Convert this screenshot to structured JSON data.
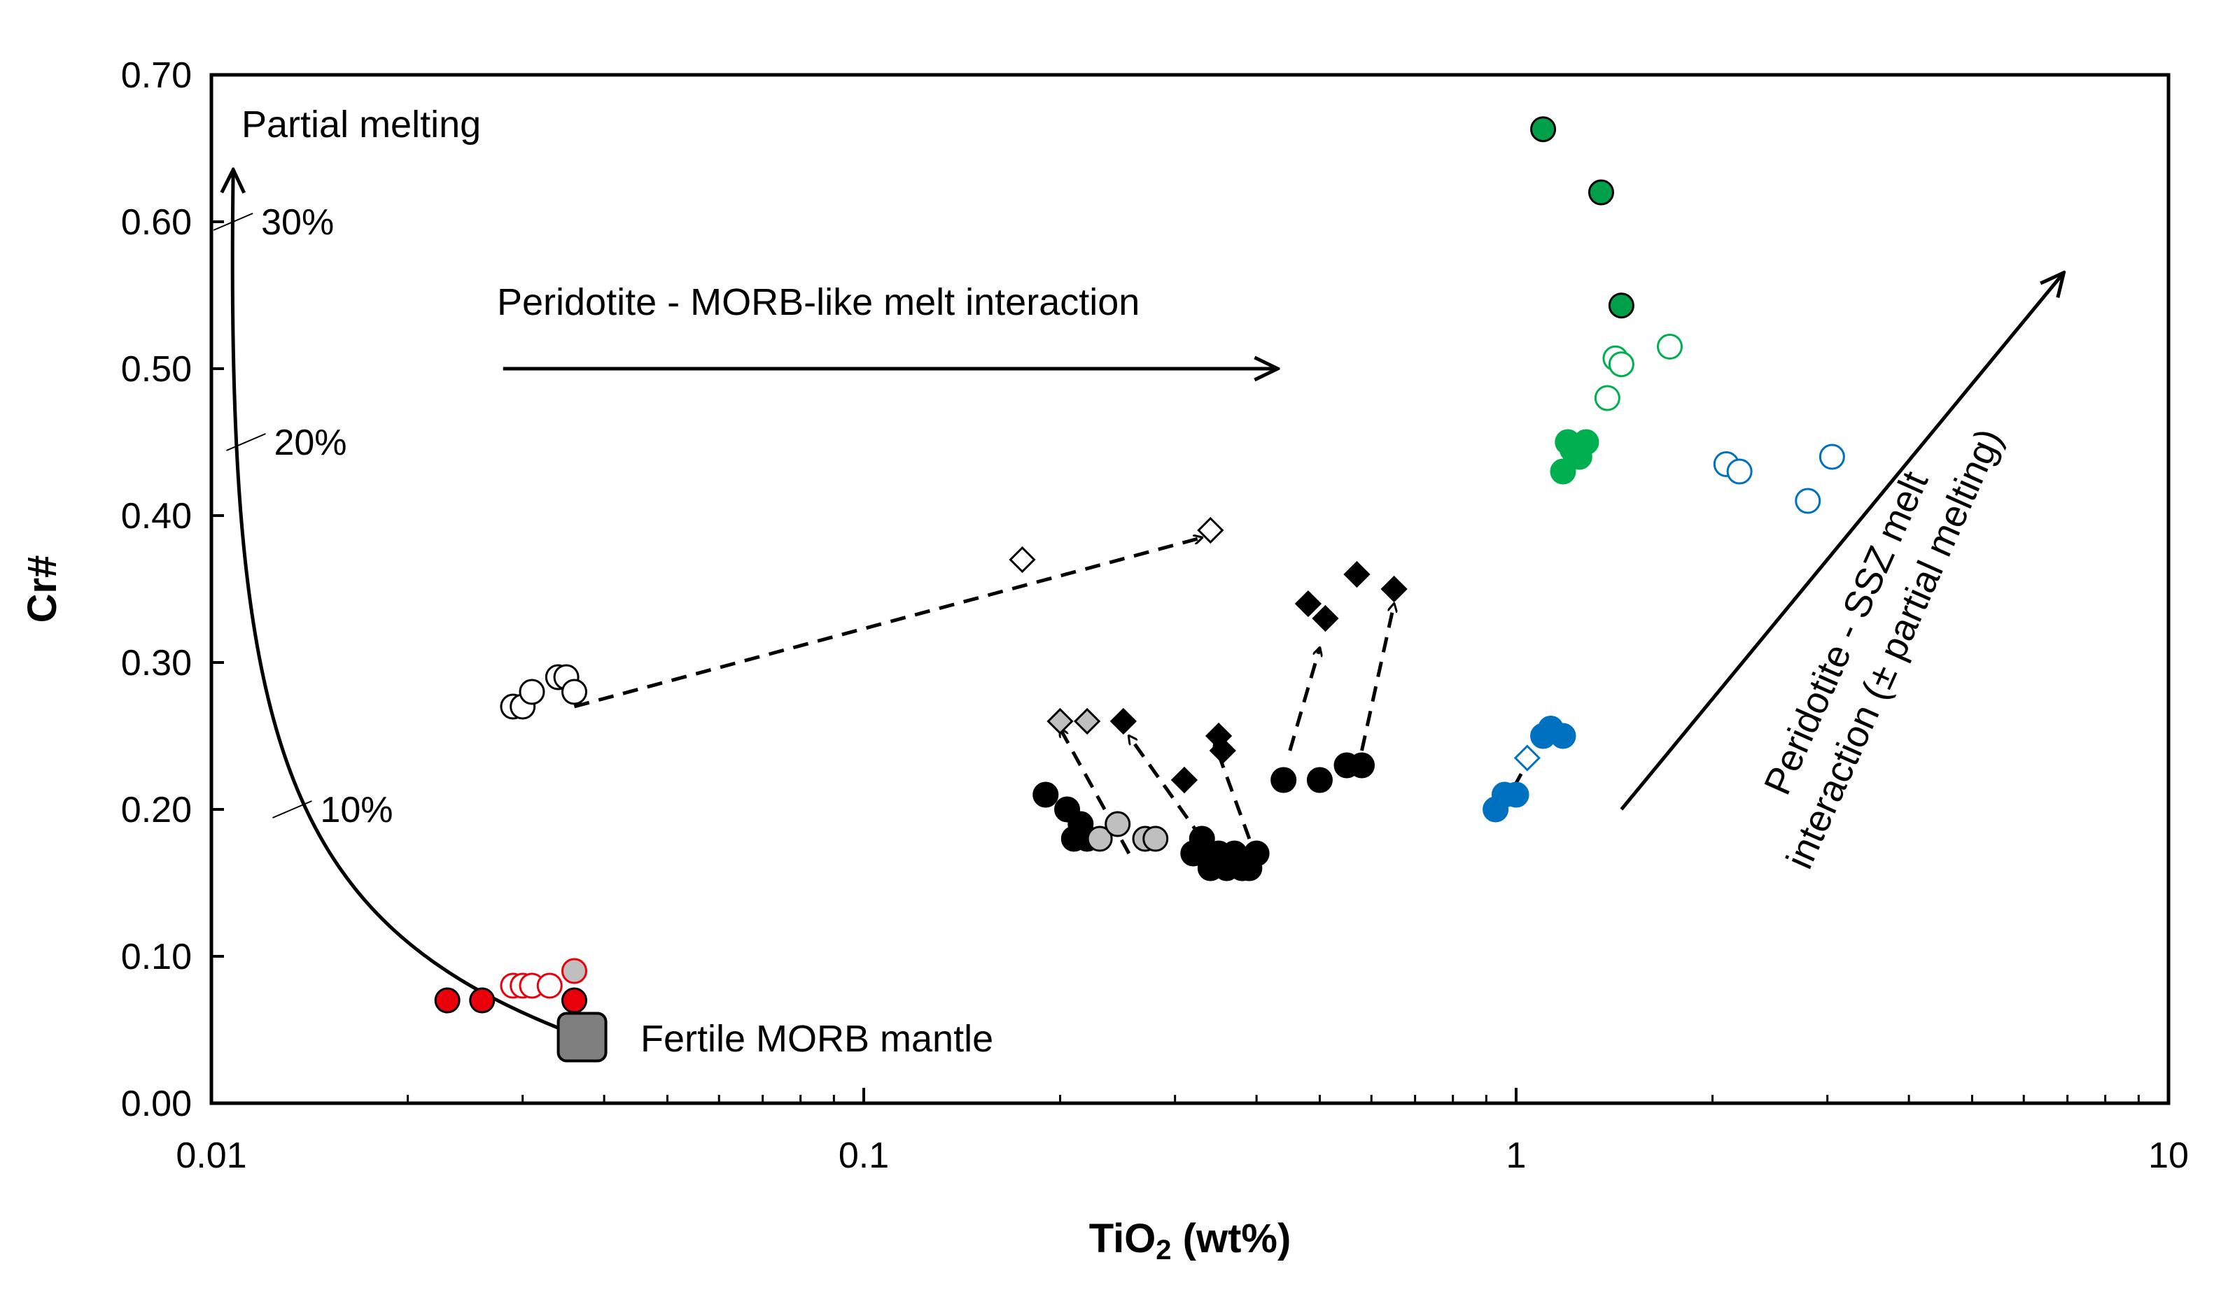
{
  "chart_data": {
    "type": "scatter",
    "title": "",
    "xlabel_main": "TiO",
    "xlabel_sub": "2",
    "xlabel_rest": " (wt%)",
    "ylabel": "Cr#",
    "x_scale": "log",
    "xlim": [
      0.01,
      10
    ],
    "ylim": [
      0,
      0.7
    ],
    "x_ticks": [
      {
        "value": 0.01,
        "label": "0.01"
      },
      {
        "value": 0.1,
        "label": "0.1"
      },
      {
        "value": 1,
        "label": "1"
      },
      {
        "value": 10,
        "label": "10"
      }
    ],
    "y_ticks": [
      {
        "value": 0.0,
        "label": "0.00"
      },
      {
        "value": 0.1,
        "label": "0.10"
      },
      {
        "value": 0.2,
        "label": "0.20"
      },
      {
        "value": 0.3,
        "label": "0.30"
      },
      {
        "value": 0.4,
        "label": "0.40"
      },
      {
        "value": 0.5,
        "label": "0.50"
      },
      {
        "value": 0.6,
        "label": "0.60"
      },
      {
        "value": 0.7,
        "label": "0.70"
      }
    ],
    "colors": {
      "red": "#e8000b",
      "light_red": "#f0a0a0",
      "black": "#000000",
      "grey": "#bfbfbf",
      "dark_grey": "#7f7f7f",
      "green": "#00b050",
      "dark_green": "#00a04a",
      "blue": "#0070c0",
      "white": "#ffffff"
    },
    "series": [
      {
        "name": "red filled circles",
        "marker": "circle",
        "fill": "red",
        "stroke": "black",
        "points": [
          [
            0.023,
            0.07
          ],
          [
            0.026,
            0.07
          ],
          [
            0.036,
            0.07
          ]
        ]
      },
      {
        "name": "light red open circles",
        "marker": "circle",
        "fill": "white",
        "stroke": "red",
        "points": [
          [
            0.029,
            0.08
          ],
          [
            0.03,
            0.08
          ],
          [
            0.031,
            0.08
          ],
          [
            0.033,
            0.08
          ]
        ]
      },
      {
        "name": "grey circles (red group)",
        "marker": "circle",
        "fill": "grey",
        "stroke": "red",
        "points": [
          [
            0.036,
            0.09
          ]
        ]
      },
      {
        "name": "white open circles",
        "marker": "circle",
        "fill": "white",
        "stroke": "black",
        "points": [
          [
            0.029,
            0.27
          ],
          [
            0.03,
            0.27
          ],
          [
            0.031,
            0.28
          ],
          [
            0.034,
            0.29
          ],
          [
            0.035,
            0.29
          ],
          [
            0.036,
            0.28
          ]
        ]
      },
      {
        "name": "open diamonds",
        "marker": "diamond",
        "fill": "white",
        "stroke": "black",
        "points": [
          [
            0.175,
            0.37
          ],
          [
            0.34,
            0.39
          ]
        ]
      },
      {
        "name": "black circles",
        "marker": "circle",
        "fill": "black",
        "stroke": "black",
        "points": [
          [
            0.19,
            0.21
          ],
          [
            0.205,
            0.2
          ],
          [
            0.21,
            0.18
          ],
          [
            0.215,
            0.19
          ],
          [
            0.22,
            0.18
          ],
          [
            0.32,
            0.17
          ],
          [
            0.33,
            0.18
          ],
          [
            0.34,
            0.16
          ],
          [
            0.35,
            0.17
          ],
          [
            0.36,
            0.16
          ],
          [
            0.37,
            0.17
          ],
          [
            0.38,
            0.16
          ],
          [
            0.39,
            0.16
          ],
          [
            0.4,
            0.17
          ],
          [
            0.44,
            0.22
          ],
          [
            0.5,
            0.22
          ],
          [
            0.55,
            0.23
          ],
          [
            0.58,
            0.23
          ]
        ]
      },
      {
        "name": "grey circles",
        "marker": "circle",
        "fill": "grey",
        "stroke": "black",
        "points": [
          [
            0.23,
            0.18
          ],
          [
            0.245,
            0.19
          ],
          [
            0.27,
            0.18
          ],
          [
            0.28,
            0.18
          ]
        ]
      },
      {
        "name": "grey diamonds",
        "marker": "diamond",
        "fill": "grey",
        "stroke": "black",
        "points": [
          [
            0.2,
            0.26
          ],
          [
            0.22,
            0.26
          ]
        ]
      },
      {
        "name": "black diamonds",
        "marker": "diamond",
        "fill": "black",
        "stroke": "black",
        "points": [
          [
            0.25,
            0.26
          ],
          [
            0.31,
            0.22
          ],
          [
            0.35,
            0.25
          ],
          [
            0.355,
            0.24
          ],
          [
            0.48,
            0.34
          ],
          [
            0.51,
            0.33
          ],
          [
            0.57,
            0.36
          ],
          [
            0.65,
            0.35
          ]
        ]
      },
      {
        "name": "blue filled circles",
        "marker": "circle",
        "fill": "blue",
        "stroke": "blue",
        "points": [
          [
            0.93,
            0.2
          ],
          [
            0.96,
            0.21
          ],
          [
            1.0,
            0.21
          ],
          [
            1.1,
            0.25
          ],
          [
            1.13,
            0.255
          ],
          [
            1.18,
            0.25
          ]
        ]
      },
      {
        "name": "blue open diamond",
        "marker": "diamond",
        "fill": "white",
        "stroke": "blue",
        "points": [
          [
            1.04,
            0.235
          ]
        ]
      },
      {
        "name": "blue open circles",
        "marker": "circle",
        "fill": "white",
        "stroke": "blue",
        "points": [
          [
            2.1,
            0.435
          ],
          [
            2.2,
            0.43
          ],
          [
            2.8,
            0.41
          ],
          [
            3.05,
            0.44
          ]
        ]
      },
      {
        "name": "dark green circles",
        "marker": "circle",
        "fill": "dark_green",
        "stroke": "black",
        "points": [
          [
            1.1,
            0.663
          ],
          [
            1.35,
            0.62
          ],
          [
            1.45,
            0.543
          ]
        ]
      },
      {
        "name": "green open circles",
        "marker": "circle",
        "fill": "white",
        "stroke": "green",
        "points": [
          [
            1.38,
            0.48
          ],
          [
            1.42,
            0.507
          ],
          [
            1.45,
            0.503
          ],
          [
            1.72,
            0.515
          ]
        ]
      },
      {
        "name": "green filled circles",
        "marker": "circle",
        "fill": "green",
        "stroke": "green",
        "points": [
          [
            1.18,
            0.43
          ],
          [
            1.2,
            0.45
          ],
          [
            1.22,
            0.445
          ],
          [
            1.25,
            0.44
          ],
          [
            1.28,
            0.45
          ]
        ]
      },
      {
        "name": "Fertile MORB mantle",
        "marker": "square",
        "fill": "dark_grey",
        "stroke": "black",
        "points": [
          [
            0.037,
            0.045
          ]
        ]
      }
    ],
    "dashed_arrows": [
      {
        "from": [
          0.036,
          0.27
        ],
        "to": [
          0.33,
          0.385
        ]
      },
      {
        "from": [
          0.255,
          0.17
        ],
        "to": [
          0.2,
          0.255
        ]
      },
      {
        "from": [
          0.33,
          0.18
        ],
        "to": [
          0.255,
          0.25
        ]
      },
      {
        "from": [
          0.39,
          0.18
        ],
        "to": [
          0.345,
          0.245
        ]
      },
      {
        "from": [
          0.45,
          0.24
        ],
        "to": [
          0.5,
          0.31
        ]
      },
      {
        "from": [
          0.58,
          0.24
        ],
        "to": [
          0.65,
          0.34
        ]
      },
      {
        "from": [
          0.95,
          0.2
        ],
        "to": [
          1.05,
          0.235
        ]
      }
    ],
    "solid_arrows": [
      {
        "from": [
          0.028,
          0.5
        ],
        "to": [
          0.43,
          0.5
        ]
      },
      {
        "from": [
          1.45,
          0.2
        ],
        "to": [
          6.9,
          0.565
        ]
      }
    ],
    "melting_curve": {
      "start": [
        0.037,
        0.045
      ],
      "control1": [
        0.013,
        0.12
      ],
      "control2": [
        0.0105,
        0.24
      ],
      "end": [
        0.0108,
        0.635
      ],
      "ticks": [
        {
          "x": 0.0133,
          "y": 0.2,
          "label": "10%"
        },
        {
          "x": 0.0113,
          "y": 0.45,
          "label": "20%"
        },
        {
          "x": 0.0108,
          "y": 0.6,
          "label": "30%"
        }
      ]
    },
    "annotations": {
      "partial_melting": "Partial melting",
      "morb_interaction": "Peridotite - MORB-like melt interaction",
      "fertile_morb": "Fertile MORB mantle",
      "ssz_line1": "Peridotite - SSZ melt",
      "ssz_line2": "interaction (± partial melting)"
    }
  }
}
